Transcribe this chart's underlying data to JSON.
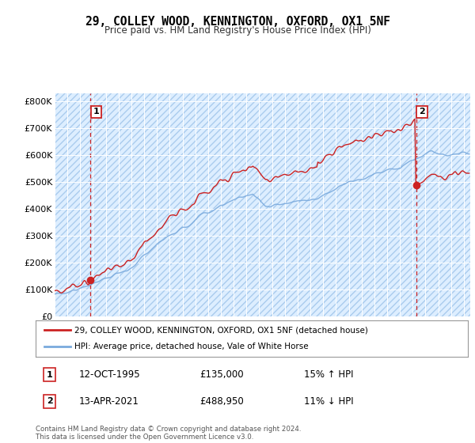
{
  "title": "29, COLLEY WOOD, KENNINGTON, OXFORD, OX1 5NF",
  "subtitle": "Price paid vs. HM Land Registry's House Price Index (HPI)",
  "legend_line1": "29, COLLEY WOOD, KENNINGTON, OXFORD, OX1 5NF (detached house)",
  "legend_line2": "HPI: Average price, detached house, Vale of White Horse",
  "annotation1_date": "12-OCT-1995",
  "annotation1_price": "£135,000",
  "annotation1_hpi": "15% ↑ HPI",
  "annotation2_date": "13-APR-2021",
  "annotation2_price": "£488,950",
  "annotation2_hpi": "11% ↓ HPI",
  "footer": "Contains HM Land Registry data © Crown copyright and database right 2024.\nThis data is licensed under the Open Government Licence v3.0.",
  "sale1_x": 1995.79,
  "sale1_y": 135000,
  "sale2_x": 2021.28,
  "sale2_y": 488950,
  "hpi_color": "#7aaadd",
  "price_color": "#cc2222",
  "bg_color": "#ffffff",
  "plot_bg_color": "#ddeeff",
  "grid_color": "#ffffff",
  "ylim": [
    0,
    830000
  ],
  "xlim_start": 1993,
  "xlim_end": 2025.5,
  "yticks": [
    0,
    100000,
    200000,
    300000,
    400000,
    500000,
    600000,
    700000,
    800000
  ],
  "ytick_labels": [
    "£0",
    "£100K",
    "£200K",
    "£300K",
    "£400K",
    "£500K",
    "£600K",
    "£700K",
    "£800K"
  ]
}
